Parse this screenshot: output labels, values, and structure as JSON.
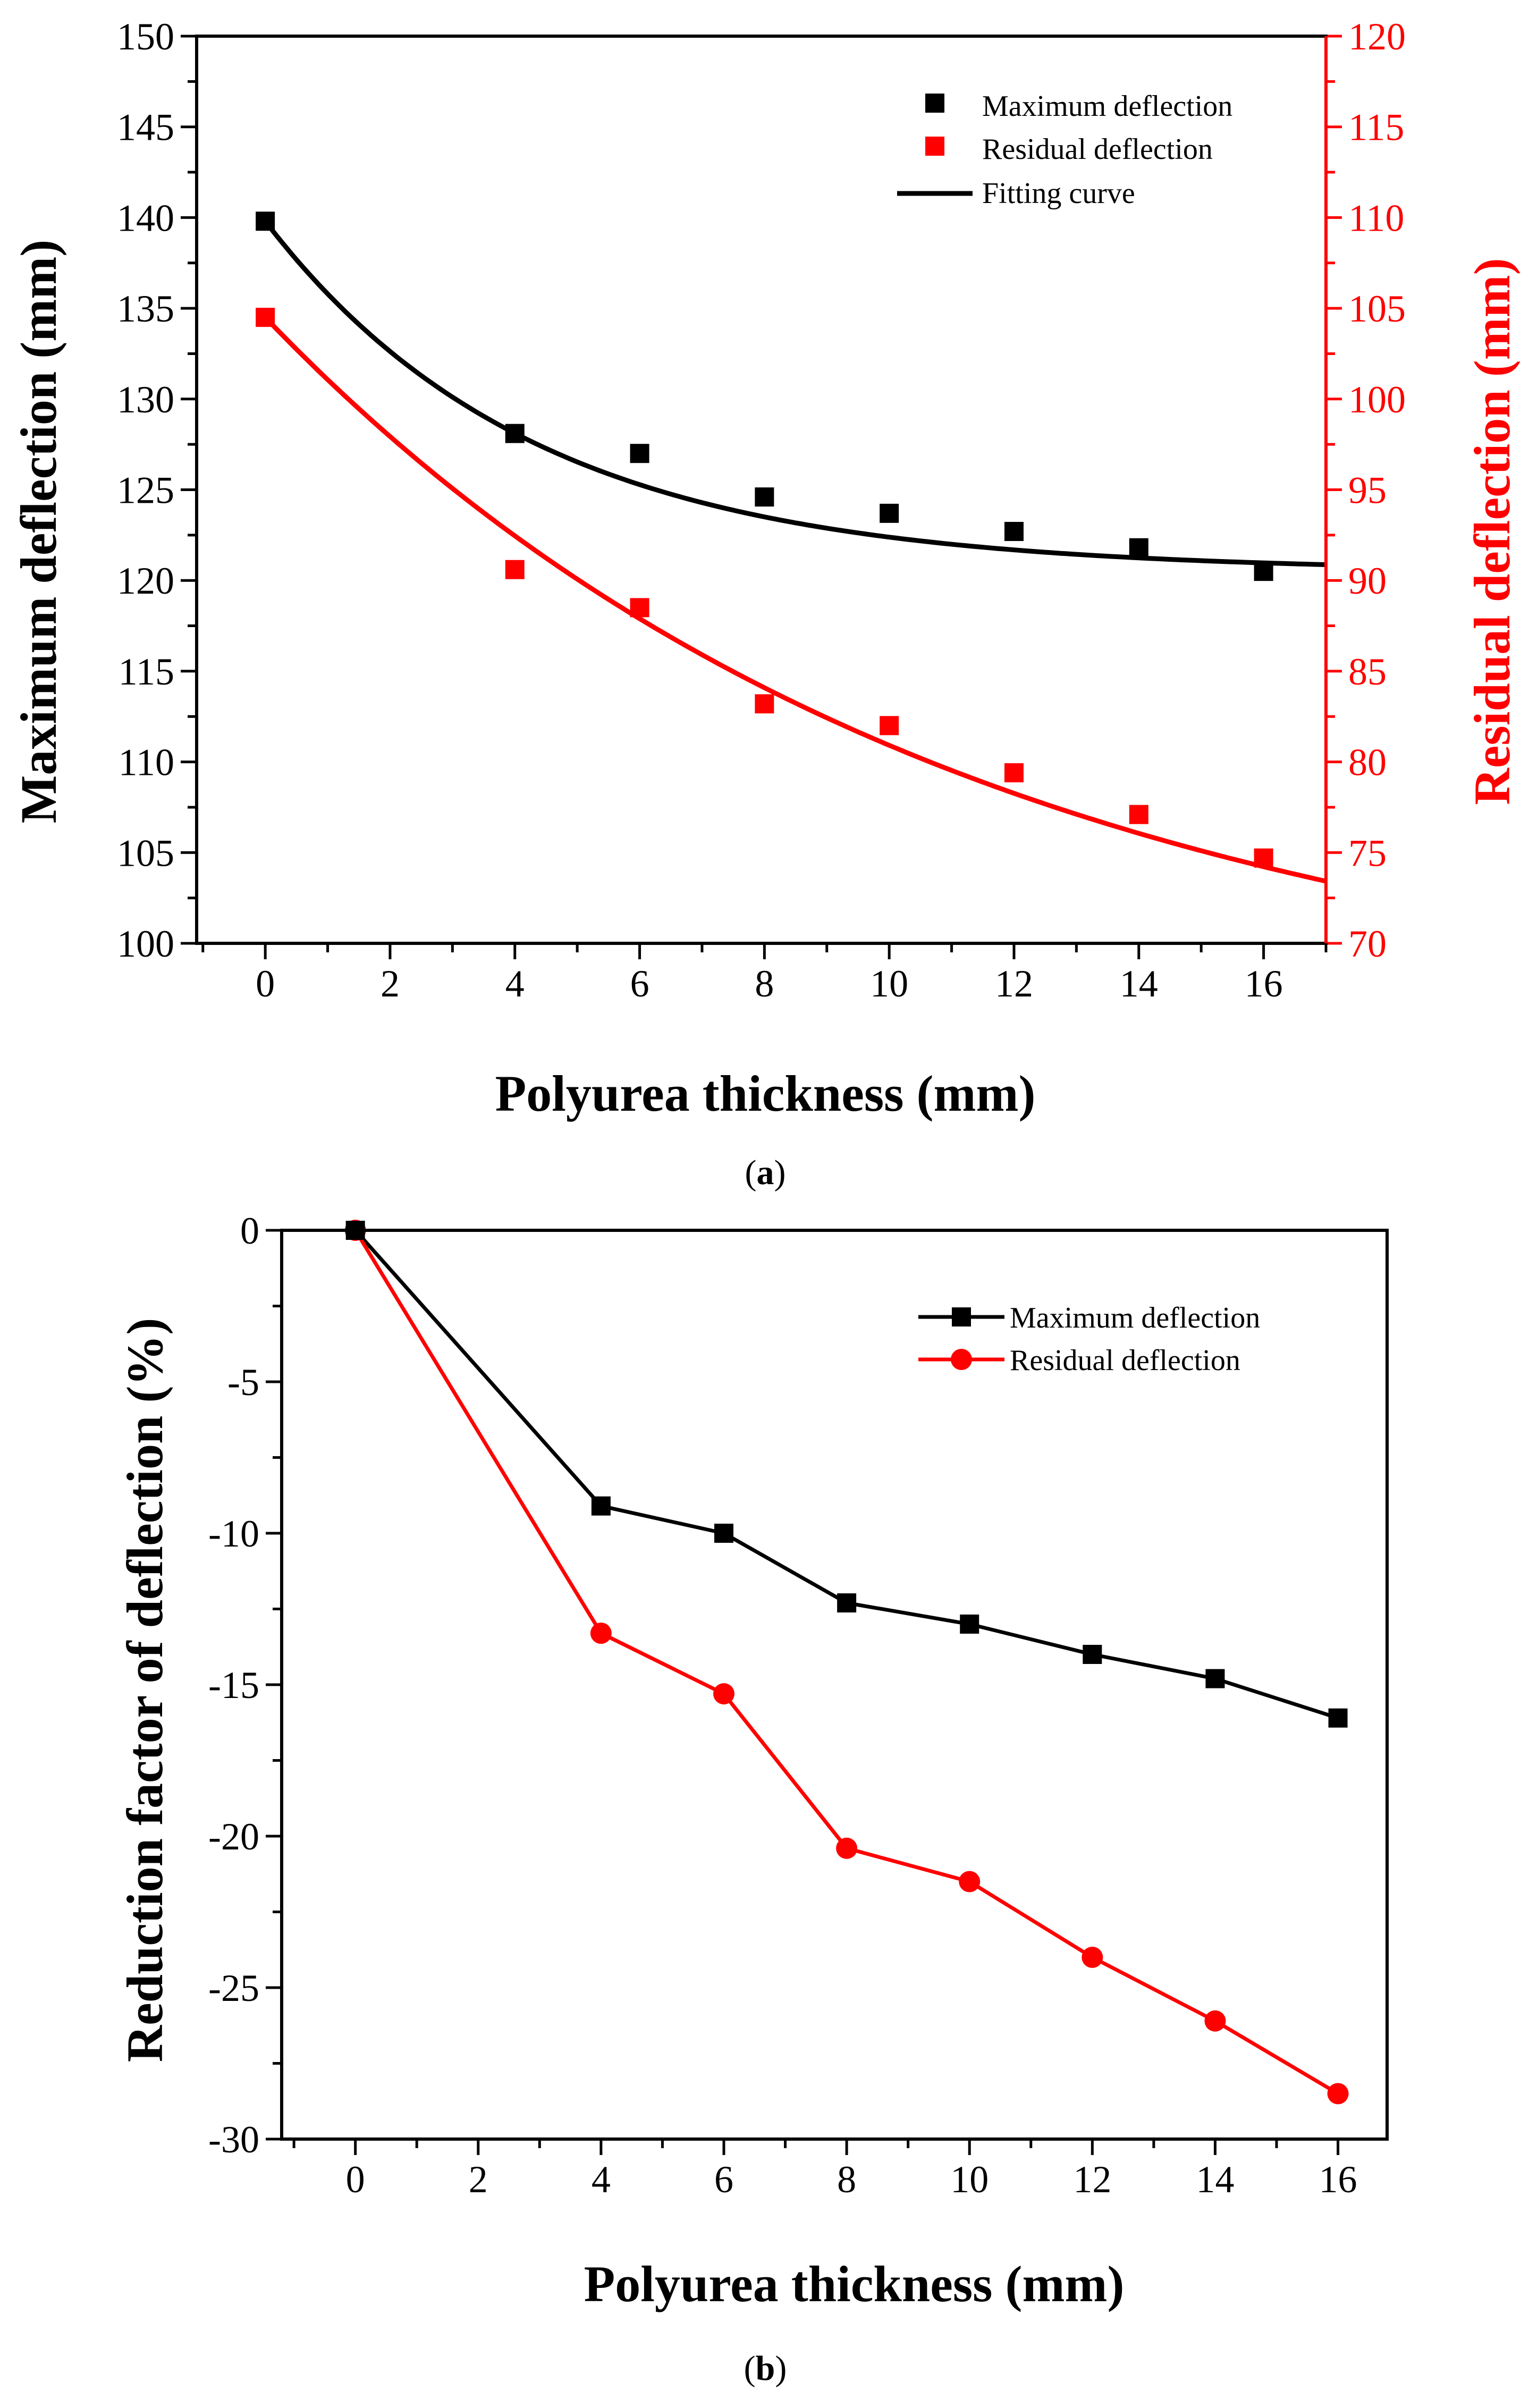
{
  "chart_data": [
    {
      "type": "scatter",
      "caption": {
        "open": "(",
        "letter": "a",
        "close": ")"
      },
      "xlabel": "Polyurea thickness (mm)",
      "ylabel_left": "Maximum deflection (mm)",
      "ylabel_right": "Residual deflection (mm)",
      "xlim": [
        -1.1,
        17
      ],
      "ylim_left": [
        100,
        150
      ],
      "ylim_right": [
        70,
        120
      ],
      "x_ticks": [
        "0",
        "2",
        "4",
        "6",
        "8",
        "10",
        "12",
        "14",
        "16"
      ],
      "y_ticks_left": [
        "100",
        "105",
        "110",
        "115",
        "120",
        "125",
        "130",
        "135",
        "140",
        "145",
        "150"
      ],
      "y_ticks_right": [
        "70",
        "75",
        "80",
        "85",
        "90",
        "95",
        "100",
        "105",
        "110",
        "115",
        "120"
      ],
      "colors": {
        "max": "#000000",
        "res": "#ff0000"
      },
      "legend": [
        "Maximum deflection",
        "Residual deflection",
        "Fitting curve"
      ],
      "series": [
        {
          "name": "Maximum deflection",
          "axis": "left",
          "x": [
            0,
            4,
            6,
            8,
            10,
            12,
            14,
            16
          ],
          "y": [
            139.8,
            128.1,
            127.0,
            124.6,
            123.7,
            122.7,
            121.8,
            120.5
          ]
        },
        {
          "name": "Residual deflection",
          "axis": "right",
          "x": [
            0,
            4,
            6,
            8,
            10,
            12,
            14,
            16
          ],
          "y": [
            104.5,
            90.6,
            88.5,
            83.2,
            82.0,
            79.4,
            77.1,
            74.7
          ]
        }
      ],
      "fits": [
        {
          "name": "Fitting curve (maximum)",
          "axis": "left",
          "model": "y = a + b*exp(-x/t)",
          "a": 120.5,
          "b": 19.3,
          "t": 4.3,
          "x_range": [
            0,
            17
          ]
        },
        {
          "name": "Fitting curve (residual)",
          "axis": "right",
          "model": "y = a + b*exp(-x/t)",
          "a": 65.0,
          "b": 39.5,
          "t": 11.0,
          "x_range": [
            0,
            17
          ]
        }
      ]
    },
    {
      "type": "line",
      "caption": {
        "open": "(",
        "letter": "b",
        "close": ")"
      },
      "xlabel": "Polyurea thickness (mm)",
      "ylabel": "Reduction factor of deflection (%)",
      "xlim": [
        -1.2,
        16.8
      ],
      "ylim": [
        -30,
        0
      ],
      "x_ticks": [
        "0",
        "2",
        "4",
        "6",
        "8",
        "10",
        "12",
        "14",
        "16"
      ],
      "y_ticks": [
        "0",
        "-5",
        "-10",
        "-15",
        "-20",
        "-25",
        "-30"
      ],
      "colors": {
        "max": "#000000",
        "res": "#ff0000"
      },
      "legend": [
        "Maximum deflection",
        "Residual deflection"
      ],
      "series": [
        {
          "name": "Maximum deflection",
          "marker": "square",
          "x": [
            0,
            4,
            6,
            8,
            10,
            12,
            14,
            16
          ],
          "y": [
            0,
            -9.1,
            -10.0,
            -12.3,
            -13.0,
            -14.0,
            -14.8,
            -16.1
          ]
        },
        {
          "name": "Residual deflection",
          "marker": "circle",
          "x": [
            0,
            4,
            6,
            8,
            10,
            12,
            14,
            16
          ],
          "y": [
            0,
            -13.3,
            -15.3,
            -20.4,
            -21.5,
            -24.0,
            -26.1,
            -28.5
          ]
        }
      ]
    }
  ]
}
